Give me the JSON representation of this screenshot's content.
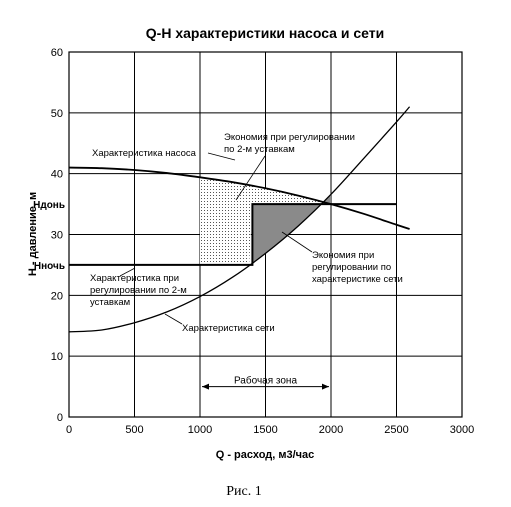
{
  "chart_data": {
    "type": "line",
    "title": "Q-H характеристики насоса и сети",
    "xlabel": "Q - расход, м3/час",
    "ylabel": "H - давление, м",
    "xlim": [
      0,
      3000
    ],
    "ylim": [
      0,
      60
    ],
    "xticks": [
      0,
      500,
      1000,
      1500,
      2000,
      2500,
      3000
    ],
    "yticks": [
      0,
      10,
      20,
      30,
      40,
      50,
      60
    ],
    "grid": true,
    "series": [
      {
        "name": "Характеристика насоса",
        "x": [
          0,
          250,
          500,
          750,
          1000,
          1250,
          1500,
          1750,
          2000,
          2250,
          2500,
          2600
        ],
        "y": [
          41,
          40.9,
          40.6,
          40.1,
          39.4,
          38.6,
          37.6,
          36.4,
          35,
          33.4,
          31.6,
          30.9
        ]
      },
      {
        "name": "Характеристика сети",
        "x": [
          0,
          250,
          500,
          750,
          1000,
          1250,
          1500,
          1750,
          2000,
          2250,
          2500,
          2600
        ],
        "y": [
          14,
          14.3,
          15.5,
          17.3,
          19.8,
          23,
          26.9,
          31.4,
          36.6,
          42.5,
          48.5,
          51
        ]
      }
    ],
    "levels": [
      {
        "label": "Hдонь",
        "y": 35
      },
      {
        "label": "Hночь",
        "y": 25
      }
    ],
    "working_zone": {
      "label": "Рабочая зона",
      "x_from": 1000,
      "x_to": 2000,
      "y": 5
    },
    "annotations": [
      {
        "lines": [
          "Характеристика насоса"
        ]
      },
      {
        "lines": [
          "Экономия при регулировании",
          "по 2-м уставкам"
        ]
      },
      {
        "lines": [
          "Экономия при",
          "регулировании по",
          "характеристике сети"
        ]
      },
      {
        "lines": [
          "Характеристика при",
          "регулировании по 2-м",
          "уставкам"
        ]
      },
      {
        "lines": [
          "Характеристика сети"
        ]
      }
    ],
    "caption": "Рис. 1"
  }
}
